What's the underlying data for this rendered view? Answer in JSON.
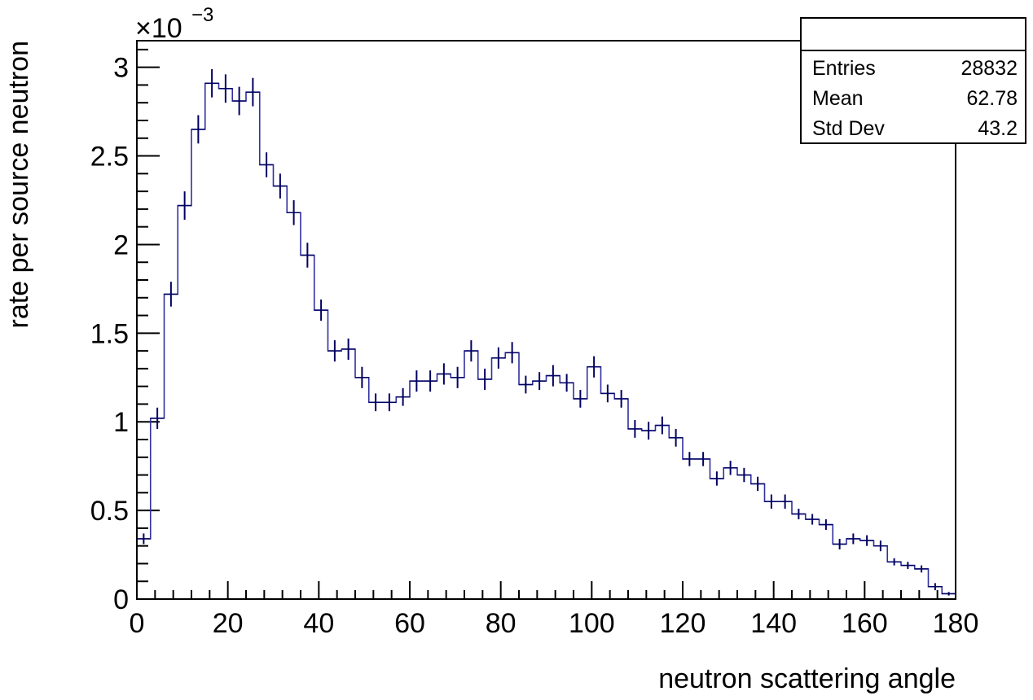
{
  "chart_data": {
    "type": "bar",
    "style": "histogram-step-with-error-bars",
    "title": "",
    "xlabel": "neutron scattering angle",
    "ylabel": "rate per source neutron",
    "y_scale_label": "×10",
    "y_scale_exponent": "−3",
    "xlim": [
      0,
      180
    ],
    "ylim": [
      0,
      3.15
    ],
    "x_tick_labels": [
      "0",
      "20",
      "40",
      "60",
      "80",
      "100",
      "120",
      "140",
      "160",
      "180"
    ],
    "y_tick_labels": [
      "0",
      "0.5",
      "1",
      "1.5",
      "2",
      "2.5",
      "3"
    ],
    "bin_width": 3,
    "bin_low_edges": [
      0,
      3,
      6,
      9,
      12,
      15,
      18,
      21,
      24,
      27,
      30,
      33,
      36,
      39,
      42,
      45,
      48,
      51,
      54,
      57,
      60,
      63,
      66,
      69,
      72,
      75,
      78,
      81,
      84,
      87,
      90,
      93,
      96,
      99,
      102,
      105,
      108,
      111,
      114,
      117,
      120,
      123,
      126,
      129,
      132,
      135,
      138,
      141,
      144,
      147,
      150,
      153,
      156,
      159,
      162,
      165,
      168,
      171,
      174,
      177
    ],
    "values": [
      0.34,
      1.02,
      1.72,
      2.22,
      2.65,
      2.91,
      2.88,
      2.81,
      2.86,
      2.45,
      2.33,
      2.18,
      1.94,
      1.63,
      1.4,
      1.41,
      1.25,
      1.11,
      1.11,
      1.14,
      1.23,
      1.23,
      1.27,
      1.25,
      1.4,
      1.24,
      1.36,
      1.39,
      1.21,
      1.23,
      1.26,
      1.22,
      1.13,
      1.31,
      1.16,
      1.13,
      0.96,
      0.95,
      0.98,
      0.91,
      0.79,
      0.79,
      0.68,
      0.74,
      0.7,
      0.65,
      0.55,
      0.55,
      0.48,
      0.45,
      0.42,
      0.31,
      0.34,
      0.33,
      0.3,
      0.21,
      0.19,
      0.17,
      0.07,
      0.03
    ],
    "errors": [
      0.03,
      0.06,
      0.07,
      0.08,
      0.08,
      0.08,
      0.08,
      0.08,
      0.08,
      0.07,
      0.07,
      0.07,
      0.07,
      0.06,
      0.06,
      0.06,
      0.06,
      0.05,
      0.05,
      0.05,
      0.06,
      0.06,
      0.06,
      0.06,
      0.06,
      0.06,
      0.06,
      0.06,
      0.05,
      0.05,
      0.06,
      0.05,
      0.05,
      0.06,
      0.05,
      0.05,
      0.05,
      0.05,
      0.05,
      0.05,
      0.04,
      0.04,
      0.04,
      0.04,
      0.04,
      0.04,
      0.04,
      0.04,
      0.03,
      0.03,
      0.03,
      0.03,
      0.03,
      0.03,
      0.03,
      0.02,
      0.02,
      0.02,
      0.02,
      0.01
    ],
    "line_color": "#3030a0",
    "error_bar_color": "#000060",
    "stats_box": {
      "entries_label": "Entries",
      "entries_value": "28832",
      "mean_label": "Mean",
      "mean_value": "62.78",
      "stddev_label": "Std Dev",
      "stddev_value": "43.2"
    }
  }
}
